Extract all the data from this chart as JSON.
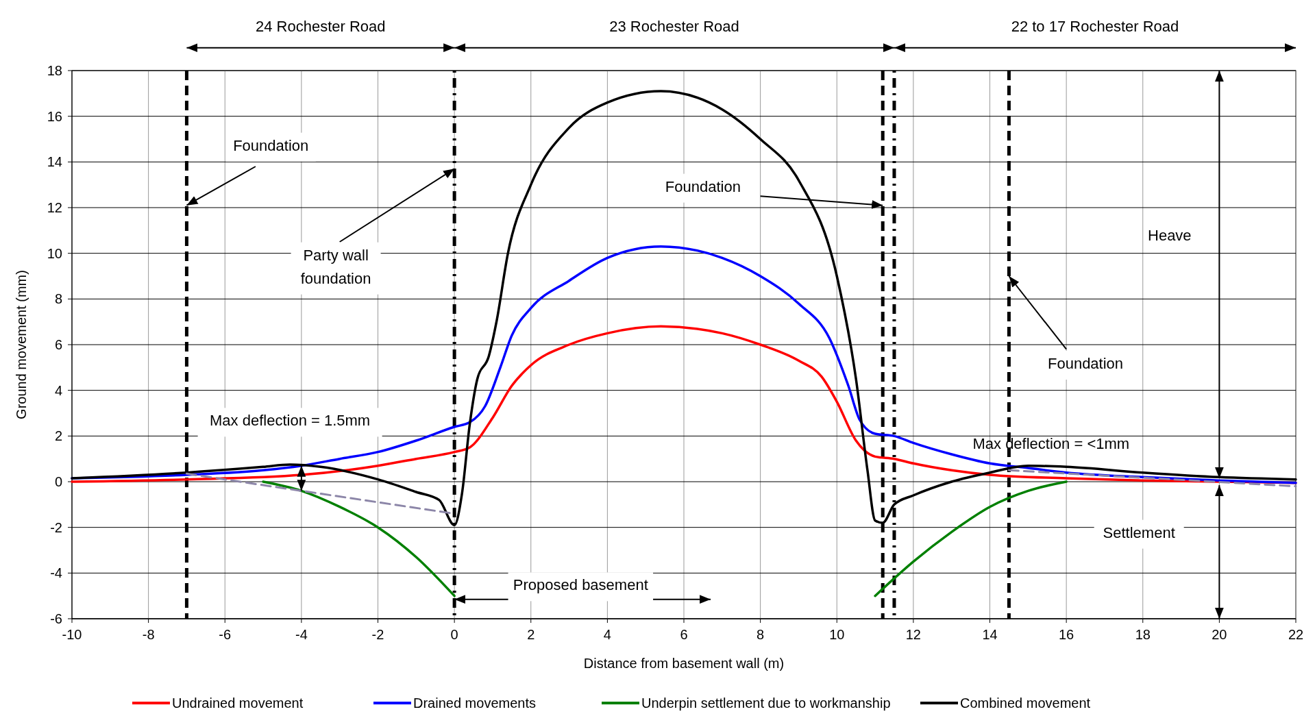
{
  "chart_data": {
    "type": "line",
    "xlabel": "Distance from basement wall (m)",
    "ylabel": "Ground movement (mm)",
    "xlim": [
      -10,
      22
    ],
    "xticks": [
      -10,
      -8,
      -6,
      -4,
      -2,
      0,
      2,
      4,
      6,
      8,
      10,
      12,
      14,
      16,
      18,
      20,
      22
    ],
    "ylim": [
      -6,
      18
    ],
    "yticks": [
      -6,
      -4,
      -2,
      0,
      2,
      4,
      6,
      8,
      10,
      12,
      14,
      16,
      18
    ],
    "grid": true,
    "legend": "bottom",
    "marker": "none",
    "line_style": "solid",
    "series": [
      {
        "name": "Undrained movement",
        "color": "#ff0000",
        "x": [
          -10,
          -7,
          -4,
          -2,
          -1,
          0,
          0.4,
          1,
          1.5,
          2,
          3,
          4,
          5.4,
          7,
          8,
          9,
          9.6,
          10,
          10.5,
          11,
          11.5,
          12,
          13,
          14,
          16,
          18,
          20,
          22
        ],
        "values": [
          0,
          0.1,
          0.3,
          0.7,
          1.0,
          1.3,
          1.5,
          2.8,
          4.2,
          5.1,
          6.0,
          6.5,
          6.8,
          6.5,
          6.0,
          5.3,
          4.6,
          3.5,
          1.8,
          1.1,
          1.0,
          0.8,
          0.5,
          0.3,
          0.15,
          0.05,
          0,
          -0.05
        ]
      },
      {
        "name": "Drained movements",
        "color": "#0000ff",
        "x": [
          -10,
          -7,
          -5,
          -4,
          -3,
          -2,
          -1,
          0,
          0.4,
          0.8,
          1.2,
          1.5,
          2,
          3,
          4,
          5.4,
          7,
          8,
          9,
          9.8,
          10.3,
          10.6,
          11,
          11.5,
          12,
          13,
          14,
          15,
          16,
          18,
          20,
          22
        ],
        "values": [
          0.15,
          0.3,
          0.5,
          0.7,
          1.0,
          1.3,
          1.8,
          2.4,
          2.6,
          3.3,
          5.0,
          6.4,
          7.6,
          8.8,
          9.8,
          10.3,
          9.8,
          9.0,
          7.8,
          6.3,
          4.2,
          2.7,
          2.1,
          2.0,
          1.7,
          1.2,
          0.8,
          0.6,
          0.4,
          0.2,
          0.05,
          -0.05
        ]
      },
      {
        "name": "Underpin settlement due to workmanship",
        "color": "#008000",
        "x": [
          -5,
          -4,
          -3,
          -2,
          -1,
          0,
          5,
          11,
          12,
          13,
          14,
          15,
          16
        ],
        "values": [
          0,
          -0.4,
          -1.1,
          -2.0,
          -3.3,
          -5.0,
          null,
          -5.0,
          -3.5,
          -2.2,
          -1.1,
          -0.4,
          0
        ]
      },
      {
        "name": "Combined movement",
        "color": "#000000",
        "x": [
          -10,
          -7,
          -5,
          -4.3,
          -3.5,
          -2,
          -1,
          -0.4,
          0,
          0.2,
          0.4,
          0.6,
          0.9,
          1.1,
          1.4,
          2,
          3,
          4,
          5.4,
          7,
          8,
          9,
          10,
          10.5,
          10.8,
          11,
          11.2,
          11.5,
          12,
          13,
          14,
          15,
          16,
          18,
          20,
          22
        ],
        "values": [
          0.15,
          0.4,
          0.65,
          0.75,
          0.65,
          0.1,
          -0.45,
          -0.8,
          -1.9,
          -0.5,
          2.5,
          4.5,
          5.5,
          7.0,
          10.0,
          13.0,
          15.5,
          16.6,
          17.1,
          16.3,
          15.0,
          13.2,
          9.0,
          4.5,
          0.5,
          -1.7,
          -1.8,
          -1.0,
          -0.6,
          0,
          0.4,
          0.7,
          0.65,
          0.4,
          0.2,
          0.1
        ]
      },
      {
        "color": "#8c86a8",
        "line_style": "dashed",
        "x": [
          -7,
          0,
          7,
          14.5,
          22
        ],
        "values": [
          0.35,
          -1.4,
          null,
          0.5,
          -0.2
        ]
      }
    ],
    "ref_lines": [
      {
        "axis": "x",
        "value": -7,
        "line_style": "dashed",
        "color": "#000000"
      },
      {
        "axis": "x",
        "value": 0,
        "line_style": "dotted",
        "color": "#000000"
      },
      {
        "axis": "x",
        "value": 11.2,
        "line_style": "dashed",
        "color": "#000000"
      },
      {
        "axis": "x",
        "value": 11.5,
        "line_style": "dotted",
        "color": "#000000"
      },
      {
        "axis": "x",
        "value": 14.5,
        "line_style": "dashed",
        "color": "#000000"
      }
    ],
    "annotations": [
      "24 Rochester Road",
      "23 Rochester Road",
      "22 to 17 Rochester Road",
      {
        "text": "Foundation",
        "x": -7,
        "y": 12.1
      },
      {
        "text": "Party wall\nfoundation",
        "x": 0,
        "y": 13.7
      },
      "Foundation",
      {
        "text": "Foundation",
        "x": 14.5,
        "y": 9
      },
      "Heave",
      "Settlement",
      "Max deflection = 1.5mm",
      "Max deflection = <1mm",
      "Proposed basement"
    ]
  }
}
